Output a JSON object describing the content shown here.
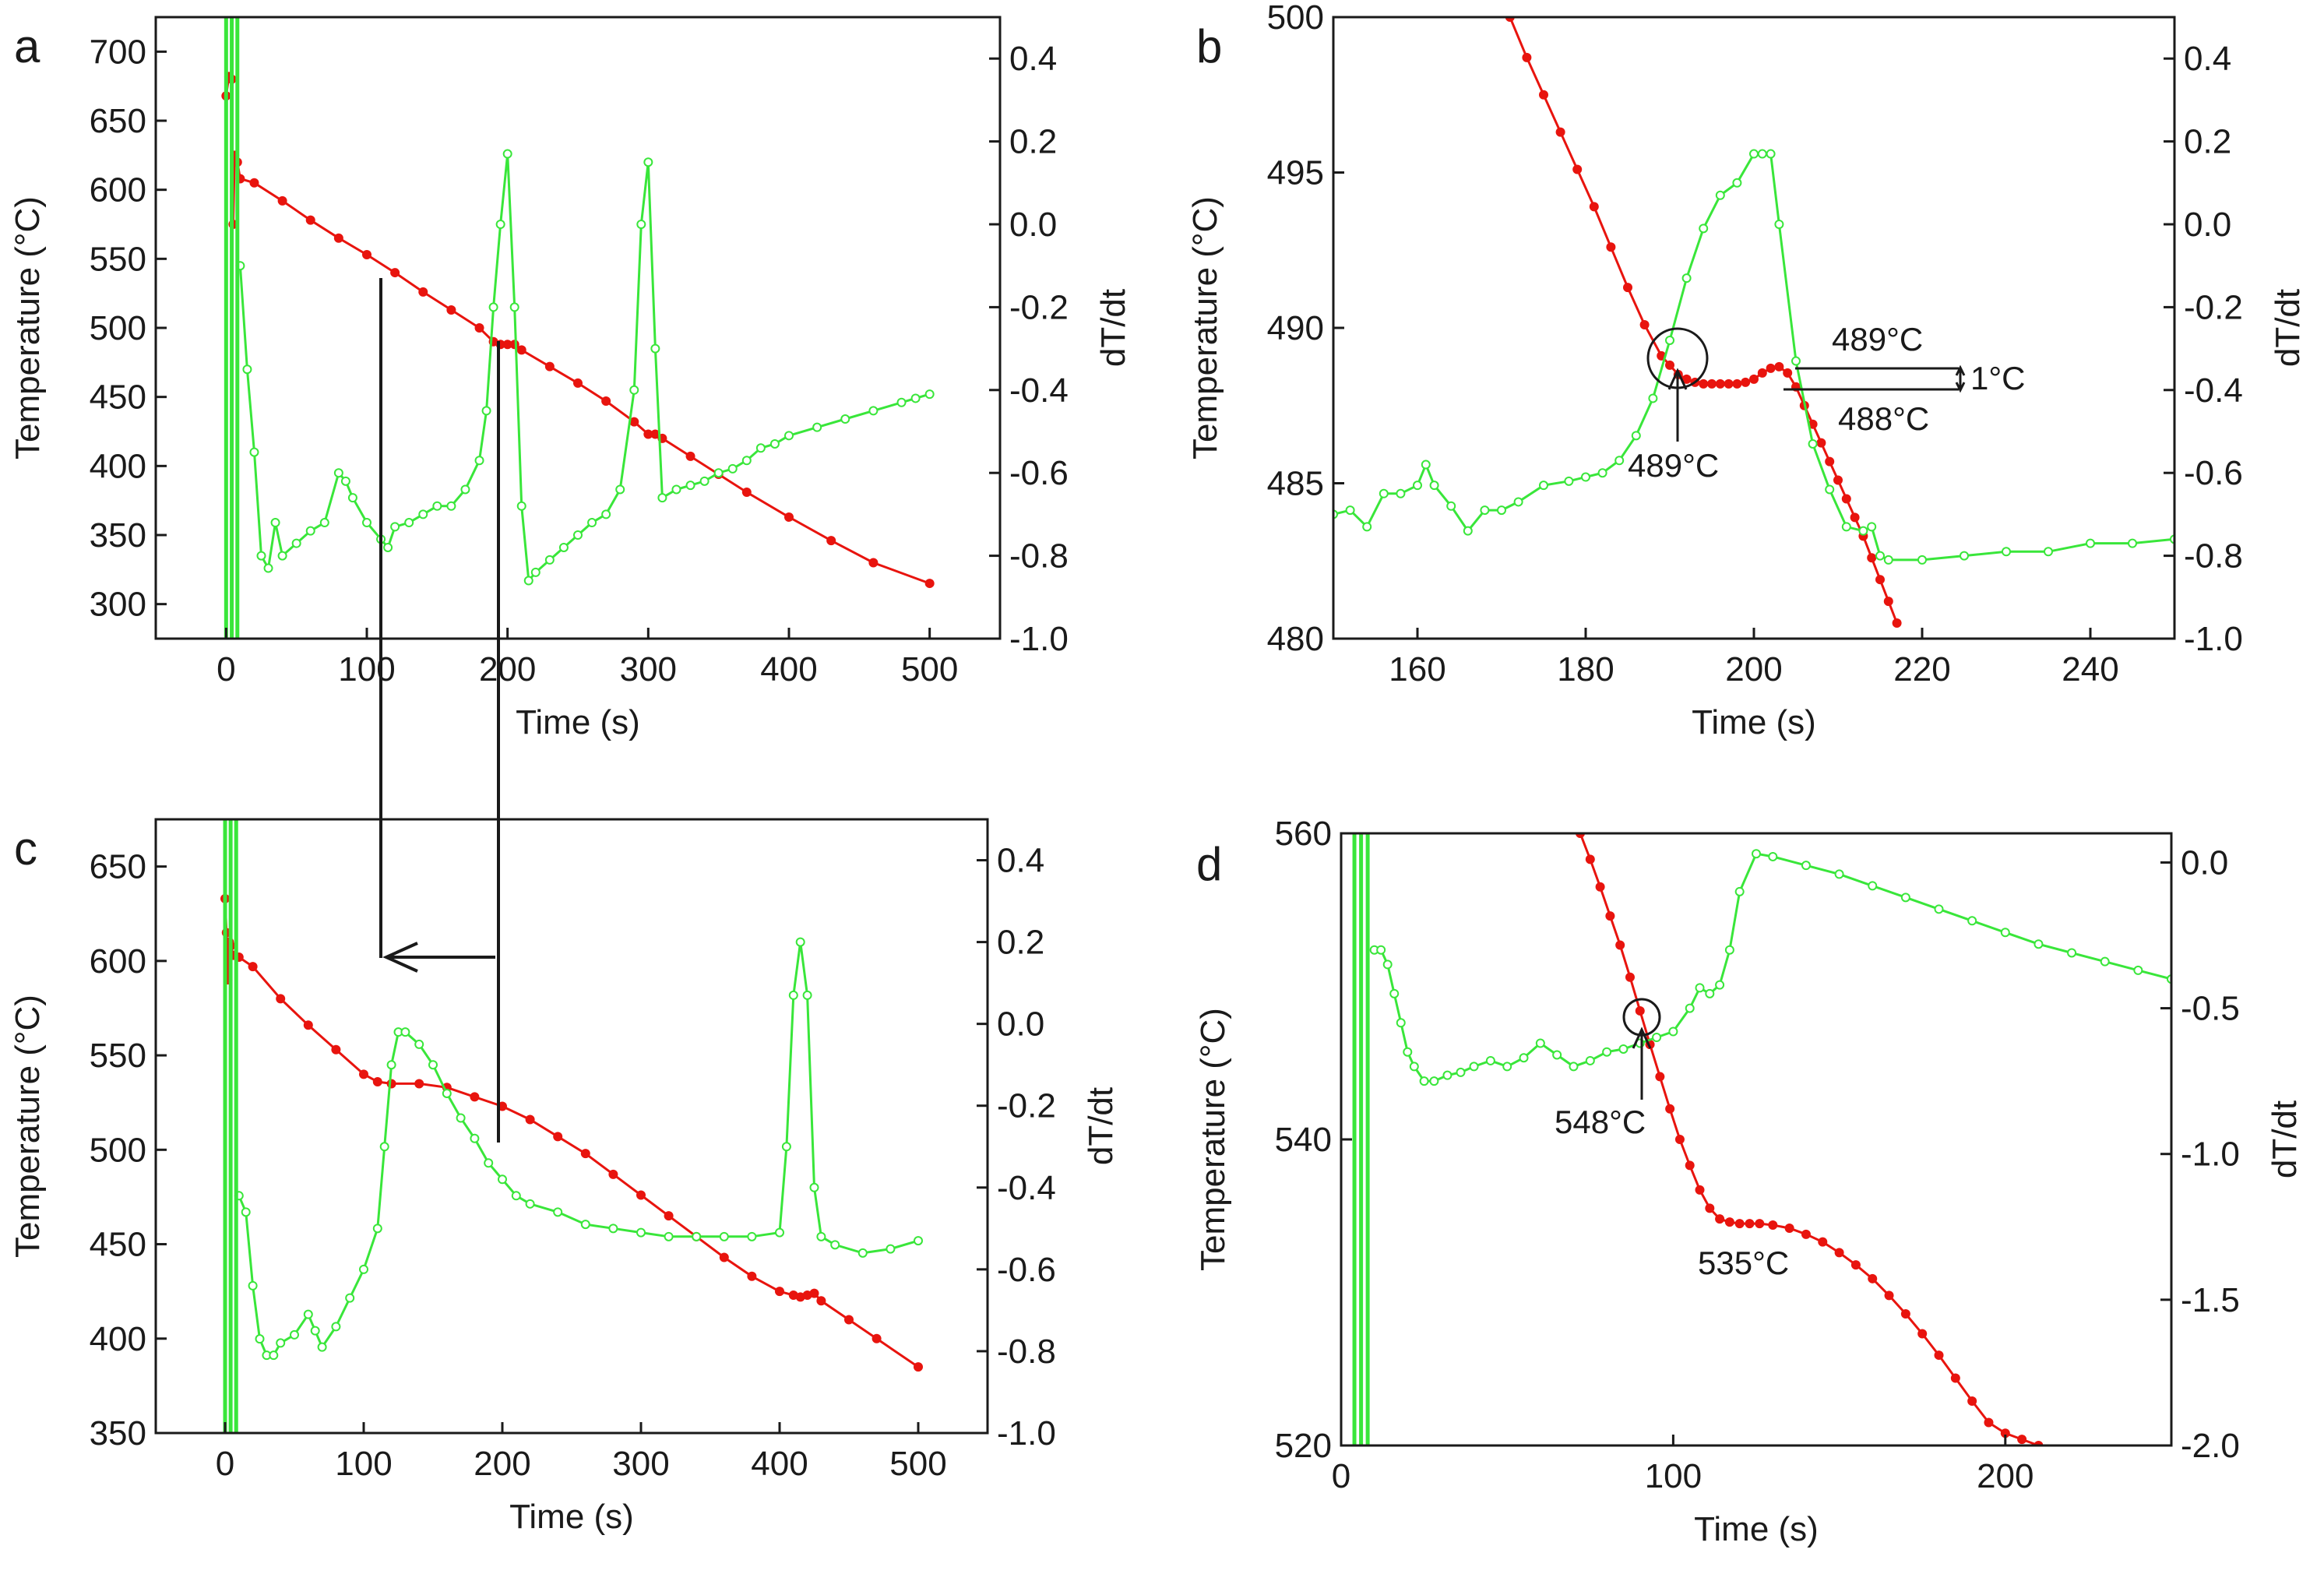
{
  "colors": {
    "temperature": "#e8140e",
    "derivative": "#39e63a",
    "axis": "#1a1a1a"
  },
  "chart_data": [
    {
      "panel": "a",
      "type": "line",
      "xlabel": "Time (s)",
      "ylabel": "Temperature (°C)",
      "y2label": "dT/dt",
      "xlim": [
        -50,
        550
      ],
      "ylim": [
        275,
        725
      ],
      "y2lim": [
        -1.0,
        0.5
      ],
      "xticks": [
        0,
        100,
        200,
        300,
        400,
        500
      ],
      "yticks": [
        300,
        350,
        400,
        450,
        500,
        550,
        600,
        650,
        700
      ],
      "y2ticks": [
        -1.0,
        -0.8,
        -0.6,
        -0.4,
        -0.2,
        0.0,
        0.2,
        0.4
      ],
      "y2ticklabels": [
        "-1.0",
        "-0.8",
        "-0.6",
        "-0.4",
        "-0.2",
        "0.0",
        "0.2",
        "0.4"
      ],
      "series": [
        {
          "axis": "left",
          "style": "dots",
          "x": [
            0,
            2,
            4,
            5,
            6,
            8,
            10,
            20,
            40,
            60,
            80,
            100,
            120,
            140,
            160,
            180,
            190,
            195,
            200,
            205,
            210,
            230,
            250,
            270,
            290,
            300,
            305,
            310,
            330,
            350,
            370,
            400,
            430,
            460,
            500
          ],
          "y": [
            668,
            682,
            680,
            575,
            625,
            620,
            608,
            605,
            592,
            578,
            565,
            553,
            540,
            526,
            513,
            500,
            490,
            488,
            488,
            488,
            484,
            472,
            460,
            447,
            432,
            423,
            423,
            420,
            407,
            394,
            381,
            363,
            346,
            330,
            315
          ]
        },
        {
          "axis": "right",
          "style": "circles",
          "x": [
            10,
            15,
            20,
            25,
            30,
            35,
            40,
            50,
            60,
            70,
            80,
            85,
            90,
            100,
            110,
            115,
            120,
            130,
            140,
            150,
            160,
            170,
            180,
            185,
            190,
            195,
            200,
            205,
            210,
            215,
            220,
            230,
            240,
            250,
            260,
            270,
            280,
            290,
            295,
            300,
            305,
            310,
            320,
            330,
            340,
            350,
            360,
            370,
            380,
            390,
            400,
            420,
            440,
            460,
            480,
            490,
            500
          ],
          "y": [
            -0.1,
            -0.35,
            -0.55,
            -0.8,
            -0.83,
            -0.72,
            -0.8,
            -0.77,
            -0.74,
            -0.72,
            -0.6,
            -0.62,
            -0.66,
            -0.72,
            -0.76,
            -0.78,
            -0.73,
            -0.72,
            -0.7,
            -0.68,
            -0.68,
            -0.64,
            -0.57,
            -0.45,
            -0.2,
            0.0,
            0.17,
            -0.2,
            -0.68,
            -0.86,
            -0.84,
            -0.81,
            -0.78,
            -0.75,
            -0.72,
            -0.7,
            -0.64,
            -0.4,
            0.0,
            0.15,
            -0.3,
            -0.66,
            -0.64,
            -0.63,
            -0.62,
            -0.6,
            -0.59,
            -0.57,
            -0.54,
            -0.53,
            -0.51,
            -0.49,
            -0.47,
            -0.45,
            -0.43,
            -0.42,
            -0.41
          ]
        }
      ]
    },
    {
      "panel": "b",
      "type": "line",
      "xlabel": "Time (s)",
      "ylabel": "Temperature (°C)",
      "y2label": "dT/dt",
      "xlim": [
        150,
        250
      ],
      "ylim": [
        480,
        500
      ],
      "y2lim": [
        -1.0,
        0.5
      ],
      "xticks": [
        160,
        180,
        200,
        220,
        240
      ],
      "yticks": [
        480,
        485,
        490,
        495,
        500
      ],
      "y2ticks": [
        -1.0,
        -0.8,
        -0.6,
        -0.4,
        -0.2,
        0.0,
        0.2,
        0.4
      ],
      "y2ticklabels": [
        "-1.0",
        "-0.8",
        "-0.6",
        "-0.4",
        "-0.2",
        "0.0",
        "0.2",
        "0.4"
      ],
      "annotations": [
        "489°C",
        "489°C",
        "1°C",
        "488°C"
      ],
      "series": [
        {
          "axis": "left",
          "style": "dots",
          "x": [
            171,
            173,
            175,
            177,
            179,
            181,
            183,
            185,
            187,
            189,
            190,
            191,
            192,
            193,
            194,
            195,
            196,
            197,
            198,
            199,
            200,
            201,
            202,
            203,
            204,
            205,
            206,
            207,
            208,
            209,
            210,
            211,
            212,
            213,
            214,
            215,
            216,
            217
          ],
          "y": [
            500,
            498.7,
            497.5,
            496.3,
            495.1,
            493.9,
            492.6,
            491.3,
            490.1,
            489.1,
            488.8,
            488.5,
            488.35,
            488.25,
            488.2,
            488.2,
            488.2,
            488.2,
            488.2,
            488.25,
            488.35,
            488.55,
            488.7,
            488.75,
            488.55,
            488.1,
            487.5,
            486.9,
            486.3,
            485.7,
            485.1,
            484.5,
            483.9,
            483.3,
            482.6,
            481.9,
            481.2,
            480.5
          ]
        },
        {
          "axis": "right",
          "style": "circles",
          "x": [
            150,
            152,
            154,
            156,
            158,
            160,
            161,
            162,
            164,
            166,
            168,
            170,
            172,
            175,
            178,
            180,
            182,
            184,
            186,
            188,
            190,
            192,
            194,
            196,
            198,
            200,
            201,
            202,
            203,
            205,
            207,
            209,
            211,
            213,
            214,
            215,
            216,
            220,
            225,
            230,
            235,
            240,
            245,
            250
          ],
          "y": [
            -0.7,
            -0.69,
            -0.73,
            -0.65,
            -0.65,
            -0.63,
            -0.58,
            -0.63,
            -0.68,
            -0.74,
            -0.69,
            -0.69,
            -0.67,
            -0.63,
            -0.62,
            -0.61,
            -0.6,
            -0.57,
            -0.51,
            -0.42,
            -0.28,
            -0.13,
            -0.01,
            0.07,
            0.1,
            0.17,
            0.17,
            0.17,
            0.0,
            -0.33,
            -0.53,
            -0.64,
            -0.73,
            -0.74,
            -0.73,
            -0.8,
            -0.81,
            -0.81,
            -0.8,
            -0.79,
            -0.79,
            -0.77,
            -0.77,
            -0.76
          ]
        }
      ]
    },
    {
      "panel": "c",
      "type": "line",
      "xlabel": "Time (s)",
      "ylabel": "Temperature (°C)",
      "y2label": "dT/dt",
      "xlim": [
        -50,
        550
      ],
      "ylim": [
        350,
        675
      ],
      "y2lim": [
        -1.0,
        0.5
      ],
      "xticks": [
        0,
        100,
        200,
        300,
        400,
        500
      ],
      "yticks": [
        350,
        400,
        450,
        500,
        550,
        600,
        650
      ],
      "y2ticks": [
        -1.0,
        -0.8,
        -0.6,
        -0.4,
        -0.2,
        0.0,
        0.2,
        0.4
      ],
      "y2ticklabels": [
        "-1.0",
        "-0.8",
        "-0.6",
        "-0.4",
        "-0.2",
        "0.0",
        "0.2",
        "0.4"
      ],
      "series": [
        {
          "axis": "left",
          "style": "dots",
          "x": [
            0,
            1,
            2,
            3,
            4,
            6,
            10,
            20,
            40,
            60,
            80,
            100,
            110,
            120,
            140,
            160,
            180,
            200,
            220,
            240,
            260,
            280,
            300,
            320,
            340,
            360,
            380,
            400,
            410,
            415,
            420,
            425,
            430,
            450,
            470,
            500
          ],
          "y": [
            633,
            615,
            590,
            610,
            608,
            603,
            602,
            597,
            580,
            566,
            553,
            540,
            536,
            535,
            535,
            533,
            528,
            523,
            516,
            507,
            498,
            487,
            476,
            465,
            454,
            443,
            433,
            425,
            423,
            422,
            423,
            424,
            420,
            410,
            400,
            385
          ]
        },
        {
          "axis": "right",
          "style": "circles",
          "x": [
            10,
            15,
            20,
            25,
            30,
            35,
            40,
            50,
            60,
            65,
            70,
            80,
            90,
            100,
            110,
            115,
            120,
            125,
            130,
            140,
            150,
            160,
            170,
            180,
            190,
            200,
            210,
            220,
            240,
            260,
            280,
            300,
            320,
            340,
            360,
            380,
            400,
            405,
            410,
            415,
            420,
            425,
            430,
            440,
            460,
            480,
            500
          ],
          "y": [
            -0.42,
            -0.46,
            -0.64,
            -0.77,
            -0.81,
            -0.81,
            -0.78,
            -0.76,
            -0.71,
            -0.75,
            -0.79,
            -0.74,
            -0.67,
            -0.6,
            -0.5,
            -0.3,
            -0.1,
            -0.02,
            -0.02,
            -0.05,
            -0.1,
            -0.17,
            -0.23,
            -0.28,
            -0.34,
            -0.38,
            -0.42,
            -0.44,
            -0.46,
            -0.49,
            -0.5,
            -0.51,
            -0.52,
            -0.52,
            -0.52,
            -0.52,
            -0.51,
            -0.3,
            0.07,
            0.2,
            0.07,
            -0.4,
            -0.52,
            -0.54,
            -0.56,
            -0.55,
            -0.53
          ]
        }
      ]
    },
    {
      "panel": "d",
      "type": "line",
      "xlabel": "Time (s)",
      "ylabel": "Temperature (°C)",
      "y2label": "dT/dt",
      "xlim": [
        0,
        250
      ],
      "ylim": [
        520,
        560
      ],
      "y2lim": [
        -2.0,
        0.1
      ],
      "xticks": [
        0,
        100,
        200
      ],
      "yticks": [
        520,
        540,
        560
      ],
      "y2ticks": [
        -2.0,
        -1.5,
        -1.0,
        -0.5,
        0.0
      ],
      "y2ticklabels": [
        "-2.0",
        "-1.5",
        "-1.0",
        "-0.5",
        "0.0"
      ],
      "annotations": [
        "548°C",
        "535°C"
      ],
      "series": [
        {
          "axis": "left",
          "style": "dots",
          "x": [
            72,
            75,
            78,
            81,
            84,
            87,
            90,
            93,
            96,
            99,
            102,
            105,
            108,
            111,
            114,
            117,
            120,
            123,
            126,
            130,
            135,
            140,
            145,
            150,
            155,
            160,
            165,
            170,
            175,
            180,
            185,
            190,
            195,
            200,
            205,
            210
          ],
          "y": [
            560,
            558.3,
            556.5,
            554.6,
            552.7,
            550.6,
            548.4,
            546.2,
            544.1,
            542.0,
            540.0,
            538.3,
            536.7,
            535.5,
            534.8,
            534.6,
            534.5,
            534.5,
            534.5,
            534.4,
            534.2,
            533.8,
            533.3,
            532.6,
            531.8,
            530.9,
            529.8,
            528.6,
            527.3,
            525.9,
            524.4,
            522.9,
            521.5,
            520.8,
            520.4,
            520.0
          ]
        },
        {
          "axis": "right",
          "style": "circles",
          "x": [
            10,
            12,
            14,
            16,
            18,
            20,
            22,
            25,
            28,
            32,
            36,
            40,
            45,
            50,
            55,
            60,
            65,
            70,
            75,
            80,
            85,
            90,
            95,
            100,
            105,
            108,
            111,
            114,
            117,
            120,
            125,
            130,
            140,
            150,
            160,
            170,
            180,
            190,
            200,
            210,
            220,
            230,
            240,
            250
          ],
          "y": [
            -0.3,
            -0.3,
            -0.35,
            -0.45,
            -0.55,
            -0.65,
            -0.7,
            -0.75,
            -0.75,
            -0.73,
            -0.72,
            -0.7,
            -0.68,
            -0.7,
            -0.67,
            -0.62,
            -0.66,
            -0.7,
            -0.68,
            -0.65,
            -0.64,
            -0.62,
            -0.6,
            -0.58,
            -0.5,
            -0.43,
            -0.45,
            -0.42,
            -0.3,
            -0.1,
            0.03,
            0.02,
            -0.01,
            -0.04,
            -0.08,
            -0.12,
            -0.16,
            -0.2,
            -0.24,
            -0.28,
            -0.31,
            -0.34,
            -0.37,
            -0.4
          ]
        }
      ]
    }
  ],
  "panel_labels": [
    "a",
    "b",
    "c",
    "d"
  ]
}
